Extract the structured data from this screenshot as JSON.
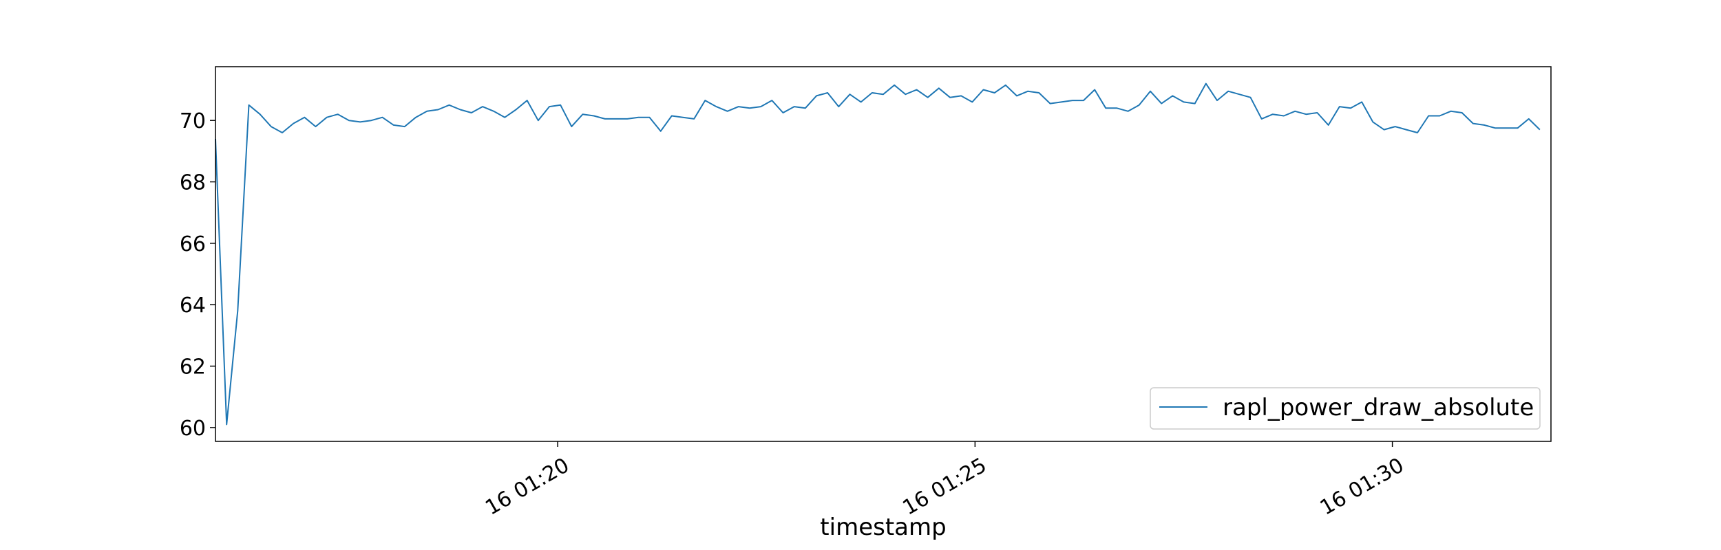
{
  "chart_data": {
    "type": "line",
    "title": "",
    "xlabel": "timestamp",
    "ylabel": "",
    "x_tick_labels": [
      "16 01:20",
      "16 01:25",
      "16 01:30"
    ],
    "y_tick_labels": [
      "60",
      "62",
      "64",
      "66",
      "68",
      "70"
    ],
    "y_ticks": [
      60,
      62,
      64,
      66,
      68,
      70
    ],
    "ylim": [
      59.55,
      71.75
    ],
    "xlim": [
      "01:15:54",
      "01:31:54"
    ],
    "x_ticks": [
      "01:20:00",
      "01:25:00",
      "01:30:00"
    ],
    "grid": false,
    "legend_position": "lower right",
    "series": [
      {
        "name": "rapl_power_draw_absolute",
        "color": "#1f77b4",
        "x_start": "01:15:54",
        "x_step_seconds": 8,
        "values": [
          69.4,
          60.1,
          63.8,
          70.5,
          70.2,
          69.8,
          69.6,
          69.9,
          70.1,
          69.8,
          70.1,
          70.2,
          70.0,
          69.95,
          70.0,
          70.1,
          69.85,
          69.8,
          70.1,
          70.3,
          70.35,
          70.5,
          70.35,
          70.25,
          70.45,
          70.3,
          70.1,
          70.35,
          70.65,
          70.0,
          70.45,
          70.5,
          69.8,
          70.2,
          70.15,
          70.05,
          70.05,
          70.05,
          70.1,
          70.1,
          69.65,
          70.15,
          70.1,
          70.05,
          70.65,
          70.45,
          70.3,
          70.45,
          70.4,
          70.45,
          70.65,
          70.25,
          70.45,
          70.4,
          70.8,
          70.9,
          70.45,
          70.85,
          70.6,
          70.9,
          70.85,
          71.15,
          70.85,
          71.0,
          70.75,
          71.05,
          70.75,
          70.8,
          70.6,
          71.0,
          70.9,
          71.15,
          70.8,
          70.95,
          70.9,
          70.55,
          70.6,
          70.65,
          70.65,
          71.0,
          70.4,
          70.4,
          70.3,
          70.5,
          70.95,
          70.55,
          70.8,
          70.6,
          70.55,
          71.2,
          70.65,
          70.95,
          70.85,
          70.75,
          70.05,
          70.2,
          70.15,
          70.3,
          70.2,
          70.25,
          69.85,
          70.45,
          70.4,
          70.6,
          69.95,
          69.7,
          69.8,
          69.7,
          69.6,
          70.15,
          70.15,
          70.3,
          70.25,
          69.9,
          69.85,
          69.75,
          69.75,
          69.75,
          70.05,
          69.7
        ]
      }
    ]
  }
}
